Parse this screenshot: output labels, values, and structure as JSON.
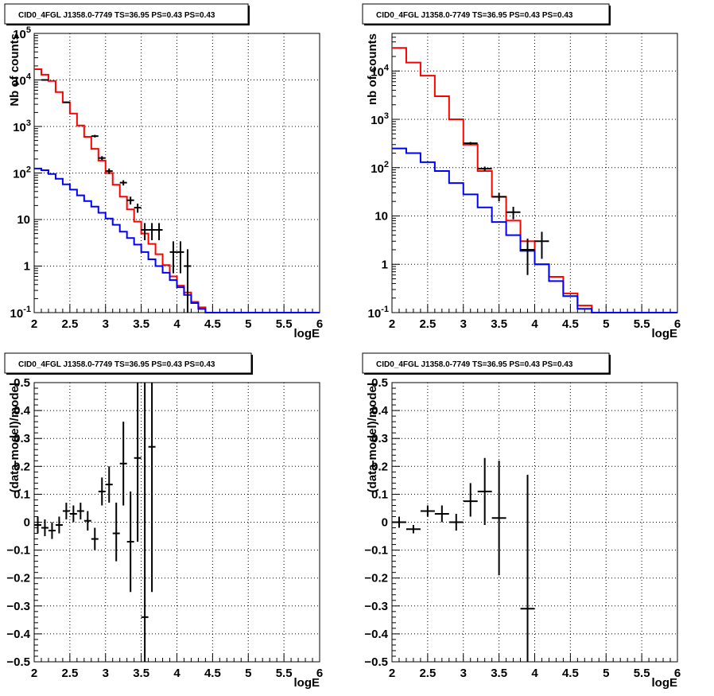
{
  "chart_data": [
    {
      "type": "line",
      "title": "CID0_4FGL J1358.0-7749 TS=36.95 PS=0.43 PS=0.43",
      "xlabel": "logE",
      "ylabel": "Nb of counts",
      "xscale": "linear",
      "yscale": "log",
      "xlim": [
        2,
        6
      ],
      "ylim": [
        0.1,
        100000
      ],
      "grid": true,
      "x_ticks": [
        "2",
        "2.5",
        "3",
        "3.5",
        "4",
        "4.5",
        "5",
        "5.5",
        "6"
      ],
      "y_ticks": [
        "10^-1",
        "1",
        "10",
        "10^2",
        "10^3",
        "10^4",
        "10^5"
      ],
      "bin_edges": [
        2.0,
        2.1,
        2.2,
        2.3,
        2.4,
        2.5,
        2.6,
        2.7,
        2.8,
        2.9,
        3.0,
        3.1,
        3.2,
        3.3,
        3.4,
        3.5,
        3.6,
        3.7,
        3.8,
        3.9,
        4.0,
        4.1,
        4.2,
        4.3,
        4.4,
        4.5,
        4.6,
        4.7,
        4.8,
        4.9,
        5.0,
        5.1,
        5.2,
        5.3,
        5.4,
        5.5,
        5.6,
        5.7,
        5.8,
        5.9,
        6.0
      ],
      "series": [
        {
          "style": "step",
          "color": "#ff0000",
          "values": [
            17000,
            13000,
            9500,
            5500,
            3300,
            1900,
            1050,
            600,
            330,
            185,
            100,
            56,
            31,
            16.5,
            9,
            5,
            3,
            1.8,
            1.05,
            0.6,
            0.38,
            0.27,
            0.17,
            0.13,
            0.1,
            0.1,
            0.1,
            0.1,
            0.1,
            0.1,
            0.1,
            0.1,
            0.1,
            0.1,
            0.1,
            0.1,
            0.1,
            0.1,
            0.1,
            0.1
          ]
        },
        {
          "style": "step",
          "color": "#0000ff",
          "values": [
            125,
            115,
            95,
            75,
            57,
            44,
            33,
            25,
            19,
            14,
            10.5,
            7.7,
            5.5,
            4.0,
            2.9,
            2.0,
            1.4,
            1.0,
            0.72,
            0.5,
            0.35,
            0.24,
            0.16,
            0.12,
            0.1,
            0.1,
            0.1,
            0.1,
            0.1,
            0.1,
            0.1,
            0.1,
            0.1,
            0.1,
            0.1,
            0.1,
            0.1,
            0.1,
            0.1,
            0.1
          ]
        },
        {
          "style": "errorbar",
          "color": "#000000",
          "points": [
            {
              "x": 2.15,
              "y": 10000,
              "xerr": 0.05,
              "ylo": 9800,
              "yhi": 10200
            },
            {
              "x": 2.45,
              "y": 3300,
              "xerr": 0.05,
              "ylo": 3200,
              "yhi": 3400
            },
            {
              "x": 2.85,
              "y": 620,
              "xerr": 0.05,
              "ylo": 580,
              "yhi": 660
            },
            {
              "x": 2.95,
              "y": 210,
              "xerr": 0.05,
              "ylo": 190,
              "yhi": 230
            },
            {
              "x": 3.05,
              "y": 110,
              "xerr": 0.05,
              "ylo": 95,
              "yhi": 125
            },
            {
              "x": 3.25,
              "y": 62,
              "xerr": 0.05,
              "ylo": 54,
              "yhi": 70
            },
            {
              "x": 3.35,
              "y": 26,
              "xerr": 0.05,
              "ylo": 21,
              "yhi": 31
            },
            {
              "x": 3.45,
              "y": 18,
              "xerr": 0.05,
              "ylo": 14,
              "yhi": 22
            },
            {
              "x": 3.55,
              "y": 6,
              "xerr": 0.05,
              "ylo": 3.6,
              "yhi": 8.4
            },
            {
              "x": 3.65,
              "y": 6,
              "xerr": 0.05,
              "ylo": 3.6,
              "yhi": 8.4
            },
            {
              "x": 3.75,
              "y": 6,
              "xerr": 0.05,
              "ylo": 3.6,
              "yhi": 8.4
            },
            {
              "x": 3.95,
              "y": 2,
              "xerr": 0.05,
              "ylo": 0.7,
              "yhi": 3.4
            },
            {
              "x": 4.05,
              "y": 2,
              "xerr": 0.05,
              "ylo": 0.7,
              "yhi": 3.4
            },
            {
              "x": 4.15,
              "y": 1,
              "xerr": 0.05,
              "ylo": 0.1,
              "yhi": 2.3
            }
          ]
        }
      ]
    },
    {
      "type": "line",
      "title": "CID0_4FGL J1358.0-7749 TS=36.95 PS=0.43 PS=0.43",
      "xlabel": "logE",
      "ylabel": "nb of counts",
      "xscale": "linear",
      "yscale": "log",
      "xlim": [
        2,
        6
      ],
      "ylim": [
        0.1,
        60000
      ],
      "grid": true,
      "x_ticks": [
        "2",
        "2.5",
        "3",
        "3.5",
        "4",
        "4.5",
        "5",
        "5.5",
        "6"
      ],
      "y_ticks": [
        "10^-1",
        "1",
        "10",
        "10^2",
        "10^3",
        "10^4"
      ],
      "bin_edges": [
        2.0,
        2.2,
        2.4,
        2.6,
        2.8,
        3.0,
        3.2,
        3.4,
        3.6,
        3.8,
        4.0,
        4.2,
        4.4,
        4.6,
        4.8,
        5.0,
        5.2,
        5.4,
        5.6,
        5.8,
        6.0
      ],
      "series": [
        {
          "style": "step",
          "color": "#ff0000",
          "values": [
            30000,
            15000,
            8000,
            3000,
            1000,
            300,
            85,
            25,
            8,
            3,
            1.0,
            0.55,
            0.25,
            0.14,
            0.1,
            0.1,
            0.1,
            0.1,
            0.1,
            0.1
          ]
        },
        {
          "style": "step",
          "color": "#0000ff",
          "values": [
            250,
            200,
            130,
            85,
            48,
            28,
            15,
            7.5,
            4,
            1.9,
            1.0,
            0.45,
            0.22,
            0.12,
            0.1,
            0.1,
            0.1,
            0.1,
            0.1,
            0.1
          ]
        },
        {
          "style": "errorbar",
          "color": "#000000",
          "points": [
            {
              "x": 3.1,
              "y": 320,
              "xerr": 0.1,
              "ylo": 300,
              "yhi": 340
            },
            {
              "x": 3.3,
              "y": 95,
              "xerr": 0.1,
              "ylo": 85,
              "yhi": 105
            },
            {
              "x": 3.5,
              "y": 25,
              "xerr": 0.1,
              "ylo": 20,
              "yhi": 30
            },
            {
              "x": 3.7,
              "y": 12,
              "xerr": 0.1,
              "ylo": 8.5,
              "yhi": 15.5
            },
            {
              "x": 3.9,
              "y": 2,
              "xerr": 0.1,
              "ylo": 0.6,
              "yhi": 3.4
            },
            {
              "x": 4.1,
              "y": 3,
              "xerr": 0.1,
              "ylo": 1.3,
              "yhi": 4.7
            }
          ]
        }
      ]
    },
    {
      "type": "scatter",
      "title": "CID0_4FGL J1358.0-7749 TS=36.95 PS=0.43 PS=0.43",
      "xlabel": "logE",
      "ylabel": "(data-model)/model",
      "xscale": "linear",
      "yscale": "linear",
      "xlim": [
        2,
        6
      ],
      "ylim": [
        -0.5,
        0.5
      ],
      "grid": true,
      "x_ticks": [
        "2",
        "2.5",
        "3",
        "3.5",
        "4",
        "4.5",
        "5",
        "5.5",
        "6"
      ],
      "y_ticks": [
        "−0.5",
        "−0.4",
        "−0.3",
        "−0.2",
        "−0.1",
        "0",
        "0.1",
        "0.2",
        "0.3",
        "0.4",
        "0.5"
      ],
      "series": [
        {
          "style": "errorbar",
          "color": "#000000",
          "points": [
            {
              "x": 2.05,
              "y": -0.01,
              "xerr": 0.05,
              "ylo": -0.04,
              "yhi": 0.02
            },
            {
              "x": 2.15,
              "y": -0.02,
              "xerr": 0.05,
              "ylo": -0.05,
              "yhi": 0.01
            },
            {
              "x": 2.25,
              "y": -0.03,
              "xerr": 0.05,
              "ylo": -0.06,
              "yhi": 0.0
            },
            {
              "x": 2.35,
              "y": -0.01,
              "xerr": 0.05,
              "ylo": -0.04,
              "yhi": 0.02
            },
            {
              "x": 2.45,
              "y": 0.04,
              "xerr": 0.05,
              "ylo": 0.01,
              "yhi": 0.07
            },
            {
              "x": 2.55,
              "y": 0.03,
              "xerr": 0.05,
              "ylo": 0.0,
              "yhi": 0.06
            },
            {
              "x": 2.65,
              "y": 0.04,
              "xerr": 0.05,
              "ylo": 0.01,
              "yhi": 0.07
            },
            {
              "x": 2.75,
              "y": 0.005,
              "xerr": 0.05,
              "ylo": -0.03,
              "yhi": 0.04
            },
            {
              "x": 2.85,
              "y": -0.06,
              "xerr": 0.05,
              "ylo": -0.1,
              "yhi": -0.02
            },
            {
              "x": 2.95,
              "y": 0.11,
              "xerr": 0.05,
              "ylo": 0.06,
              "yhi": 0.16
            },
            {
              "x": 3.05,
              "y": 0.135,
              "xerr": 0.05,
              "ylo": 0.07,
              "yhi": 0.2
            },
            {
              "x": 3.15,
              "y": -0.04,
              "xerr": 0.05,
              "ylo": -0.14,
              "yhi": 0.07
            },
            {
              "x": 3.25,
              "y": 0.21,
              "xerr": 0.05,
              "ylo": 0.06,
              "yhi": 0.36
            },
            {
              "x": 3.35,
              "y": -0.07,
              "xerr": 0.05,
              "ylo": -0.25,
              "yhi": 0.11
            },
            {
              "x": 3.45,
              "y": 0.23,
              "xerr": 0.05,
              "ylo": -0.07,
              "yhi": 0.5
            },
            {
              "x": 3.55,
              "y": -0.34,
              "xerr": 0.05,
              "ylo": -0.5,
              "yhi": 0.5
            },
            {
              "x": 3.65,
              "y": 0.27,
              "xerr": 0.05,
              "ylo": -0.25,
              "yhi": 0.5
            }
          ]
        }
      ]
    },
    {
      "type": "scatter",
      "title": "CID0_4FGL J1358.0-7749 TS=36.95 PS=0.43 PS=0.43",
      "xlabel": "logE",
      "ylabel": "(data-model)/model",
      "xscale": "linear",
      "yscale": "linear",
      "xlim": [
        2,
        6
      ],
      "ylim": [
        -0.5,
        0.5
      ],
      "grid": true,
      "x_ticks": [
        "2",
        "2.5",
        "3",
        "3.5",
        "4",
        "4.5",
        "5",
        "5.5",
        "6"
      ],
      "y_ticks": [
        "−0.5",
        "−0.4",
        "−0.3",
        "−0.2",
        "−0.1",
        "0",
        "0.1",
        "0.2",
        "0.3",
        "0.4",
        "0.5"
      ],
      "series": [
        {
          "style": "errorbar",
          "color": "#000000",
          "points": [
            {
              "x": 2.1,
              "y": 0.0,
              "xerr": 0.1,
              "ylo": -0.02,
              "yhi": 0.02
            },
            {
              "x": 2.3,
              "y": -0.025,
              "xerr": 0.1,
              "ylo": -0.04,
              "yhi": -0.01
            },
            {
              "x": 2.5,
              "y": 0.04,
              "xerr": 0.1,
              "ylo": 0.02,
              "yhi": 0.06
            },
            {
              "x": 2.7,
              "y": 0.03,
              "xerr": 0.1,
              "ylo": 0.0,
              "yhi": 0.06
            },
            {
              "x": 2.9,
              "y": 0.0,
              "xerr": 0.1,
              "ylo": -0.03,
              "yhi": 0.03
            },
            {
              "x": 3.1,
              "y": 0.075,
              "xerr": 0.1,
              "ylo": 0.02,
              "yhi": 0.14
            },
            {
              "x": 3.3,
              "y": 0.11,
              "xerr": 0.1,
              "ylo": -0.01,
              "yhi": 0.23
            },
            {
              "x": 3.5,
              "y": 0.015,
              "xerr": 0.1,
              "ylo": -0.19,
              "yhi": 0.22
            },
            {
              "x": 3.9,
              "y": -0.31,
              "xerr": 0.1,
              "ylo": -0.5,
              "yhi": 0.17
            }
          ]
        }
      ]
    }
  ]
}
